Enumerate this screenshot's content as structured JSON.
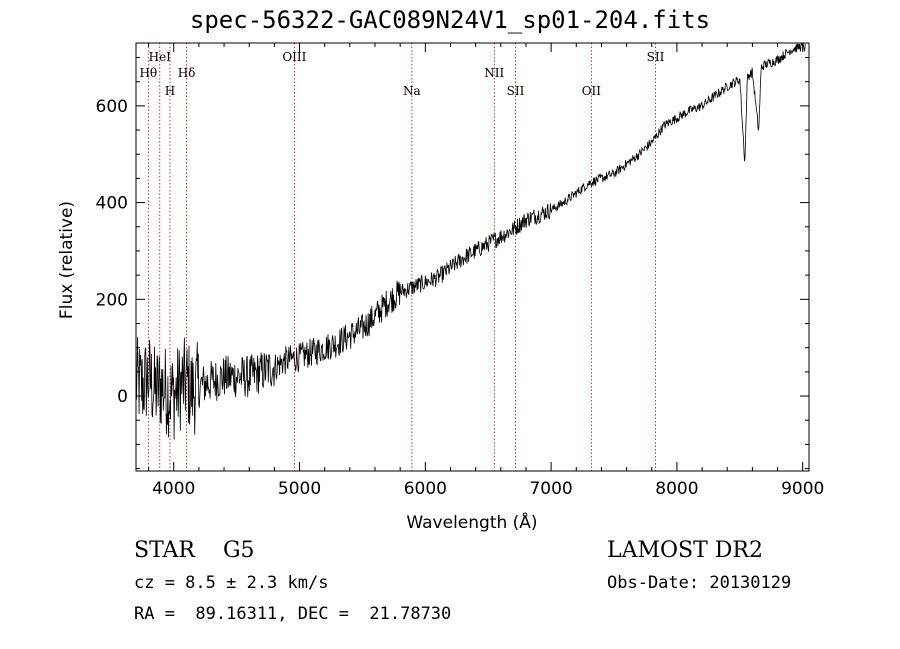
{
  "title": "spec-56322-GAC089N24V1_sp01-204.fits",
  "info": {
    "object_class": "STAR    G5",
    "survey": "LAMOST DR2",
    "cz": "cz = 8.5 ± 2.3 km/s",
    "obs_date": "Obs-Date: 20130129",
    "radec": "RA =  89.16311, DEC =  21.78730"
  },
  "chart_data": {
    "type": "line",
    "title": "spec-56322-GAC089N24V1_sp01-204.fits",
    "xlabel": "Wavelength (Å)",
    "ylabel": "Flux (relative)",
    "xlim": [
      3700,
      9050
    ],
    "ylim": [
      -155,
      730
    ],
    "x_ticks": [
      4000,
      5000,
      6000,
      7000,
      8000,
      9000
    ],
    "y_ticks": [
      0,
      200,
      400,
      600
    ],
    "grid": false,
    "series": [
      {
        "color": "#000000",
        "points": [
          [
            3700,
            30
          ],
          [
            3750,
            20
          ],
          [
            3800,
            40
          ],
          [
            3850,
            10
          ],
          [
            3900,
            20
          ],
          [
            3950,
            10
          ],
          [
            4000,
            0
          ],
          [
            4050,
            20
          ],
          [
            4100,
            30
          ],
          [
            4150,
            10
          ],
          [
            4200,
            20
          ],
          [
            4300,
            30
          ],
          [
            4400,
            40
          ],
          [
            4500,
            40
          ],
          [
            4600,
            40
          ],
          [
            4700,
            50
          ],
          [
            4800,
            60
          ],
          [
            4900,
            75
          ],
          [
            5000,
            80
          ],
          [
            5100,
            90
          ],
          [
            5200,
            100
          ],
          [
            5300,
            110
          ],
          [
            5400,
            125
          ],
          [
            5500,
            140
          ],
          [
            5600,
            165
          ],
          [
            5700,
            195
          ],
          [
            5800,
            215
          ],
          [
            5900,
            225
          ],
          [
            6000,
            235
          ],
          [
            6100,
            245
          ],
          [
            6200,
            265
          ],
          [
            6300,
            285
          ],
          [
            6400,
            300
          ],
          [
            6500,
            315
          ],
          [
            6600,
            330
          ],
          [
            6700,
            345
          ],
          [
            6800,
            365
          ],
          [
            6900,
            375
          ],
          [
            7000,
            385
          ],
          [
            7100,
            400
          ],
          [
            7200,
            420
          ],
          [
            7300,
            440
          ],
          [
            7400,
            450
          ],
          [
            7500,
            460
          ],
          [
            7600,
            480
          ],
          [
            7700,
            500
          ],
          [
            7800,
            525
          ],
          [
            7900,
            560
          ],
          [
            8000,
            575
          ],
          [
            8100,
            590
          ],
          [
            8200,
            600
          ],
          [
            8300,
            620
          ],
          [
            8400,
            640
          ],
          [
            8500,
            655
          ],
          [
            8540,
            480
          ],
          [
            8560,
            660
          ],
          [
            8600,
            670
          ],
          [
            8650,
            545
          ],
          [
            8670,
            680
          ],
          [
            8700,
            685
          ],
          [
            8800,
            695
          ],
          [
            8900,
            715
          ],
          [
            9000,
            725
          ],
          [
            9020,
            720
          ]
        ]
      }
    ],
    "line_markers": [
      {
        "label": "Hθ",
        "x": 3798,
        "row": 2
      },
      {
        "label": "HeI",
        "x": 3889,
        "row": 1
      },
      {
        "label": "H",
        "x": 3970,
        "row": 3
      },
      {
        "label": "Hδ",
        "x": 4102,
        "row": 2
      },
      {
        "label": "OIII",
        "x": 4959,
        "row": 1
      },
      {
        "label": "Na",
        "x": 5893,
        "row": 3
      },
      {
        "label": "NII",
        "x": 6548,
        "row": 2
      },
      {
        "label": "SII",
        "x": 6717,
        "row": 3
      },
      {
        "label": "OII",
        "x": 7320,
        "row": 3
      },
      {
        "label": "SII",
        "x": 7830,
        "row": 1
      }
    ]
  }
}
